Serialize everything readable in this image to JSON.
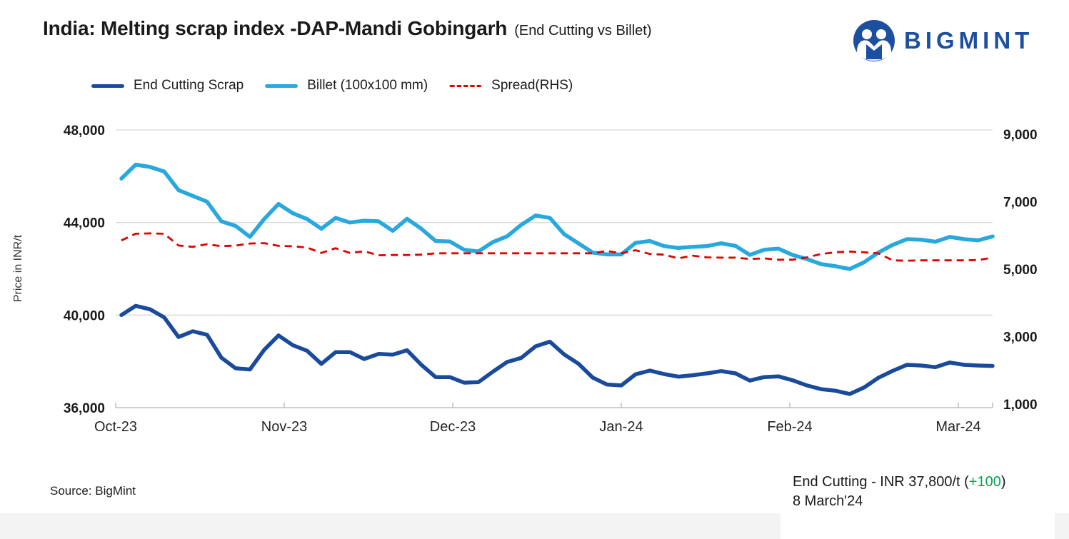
{
  "title": {
    "main": "India: Melting scrap index -DAP-Mandi Gobingarh",
    "sub": "(End Cutting vs Billet)"
  },
  "brand": {
    "name": "BIGMINT",
    "color": "#1d4fa1"
  },
  "legend": {
    "items": [
      {
        "label": "End Cutting Scrap",
        "color": "#1a4a9c",
        "style": "solid"
      },
      {
        "label": "Billet (100x100 mm)",
        "color": "#29a8dd",
        "style": "solid"
      },
      {
        "label": "Spread(RHS)",
        "color": "#e00000",
        "style": "dashed"
      }
    ]
  },
  "chart_data": {
    "type": "line",
    "title": "India: Melting scrap index -DAP-Mandi Gobingarh (End Cutting vs Billet)",
    "x_labels": [
      "Oct-23",
      "Nov-23",
      "Dec-23",
      "Jan-24",
      "Feb-24",
      "Mar-24"
    ],
    "grid": "horizontal",
    "legend_position": "top",
    "left_axis": {
      "label": "Price in INR/t",
      "range": [
        36000,
        48000
      ],
      "tick_values": [
        48000,
        44000,
        40000,
        36000
      ],
      "tick_labels": [
        "48,000",
        "44,000",
        "40,000",
        "36,000"
      ]
    },
    "right_axis": {
      "label": "Spread (RHS)",
      "range": [
        1000,
        9000
      ],
      "tick_values": [
        9000,
        7000,
        5000,
        3000,
        1000
      ],
      "tick_labels": [
        "9,000",
        "7,000",
        "5,000",
        "3,000",
        "1,000"
      ]
    },
    "series": [
      {
        "name": "End Cutting Scrap",
        "axis": "left",
        "color": "#1a4a9c",
        "style": "solid",
        "values": [
          40000,
          40400,
          40250,
          39900,
          39050,
          39300,
          39150,
          38160,
          37700,
          37650,
          38500,
          39120,
          38700,
          38460,
          37890,
          38400,
          38400,
          38100,
          38320,
          38290,
          38480,
          37850,
          37320,
          37320,
          37080,
          37100,
          37550,
          37970,
          38150,
          38650,
          38850,
          38300,
          37900,
          37300,
          37000,
          36960,
          37440,
          37600,
          37450,
          37340,
          37400,
          37480,
          37580,
          37480,
          37170,
          37320,
          37350,
          37180,
          36960,
          36800,
          36730,
          36590,
          36870,
          37290,
          37590,
          37850,
          37820,
          37750,
          37950,
          37850,
          37820,
          37800
        ]
      },
      {
        "name": "Billet (100x100 mm)",
        "axis": "left",
        "color": "#29a8dd",
        "style": "solid",
        "values": [
          45900,
          46500,
          46400,
          46200,
          45400,
          45150,
          44900,
          44050,
          43850,
          43380,
          44150,
          44800,
          44400,
          44150,
          43730,
          44200,
          44000,
          44080,
          44050,
          43640,
          44160,
          43730,
          43200,
          43180,
          42820,
          42750,
          43150,
          43400,
          43900,
          44300,
          44200,
          43500,
          43100,
          42700,
          42620,
          42620,
          43120,
          43200,
          42980,
          42900,
          42950,
          42980,
          43100,
          42990,
          42600,
          42820,
          42870,
          42600,
          42420,
          42200,
          42110,
          41990,
          42280,
          42700,
          43030,
          43280,
          43260,
          43170,
          43380,
          43280,
          43230,
          43400
        ]
      },
      {
        "name": "Spread(RHS)",
        "axis": "right",
        "color": "#e00000",
        "style": "dashed",
        "values": [
          5850,
          6050,
          6060,
          6050,
          5700,
          5660,
          5740,
          5680,
          5700,
          5760,
          5770,
          5690,
          5680,
          5640,
          5480,
          5620,
          5480,
          5530,
          5410,
          5420,
          5420,
          5430,
          5470,
          5470,
          5470,
          5470,
          5470,
          5470,
          5470,
          5470,
          5470,
          5470,
          5470,
          5470,
          5540,
          5470,
          5560,
          5450,
          5430,
          5320,
          5400,
          5350,
          5340,
          5340,
          5300,
          5320,
          5280,
          5280,
          5350,
          5450,
          5500,
          5520,
          5500,
          5470,
          5260,
          5250,
          5260,
          5260,
          5260,
          5260,
          5270,
          5340
        ]
      }
    ]
  },
  "footer": {
    "source": "Source: BigMint",
    "annotation": {
      "part1": "End Cutting - INR 37,800/t (",
      "change": "+100",
      "change_color": "#00a651",
      "part3": ")",
      "line2": "8 March'24"
    }
  }
}
